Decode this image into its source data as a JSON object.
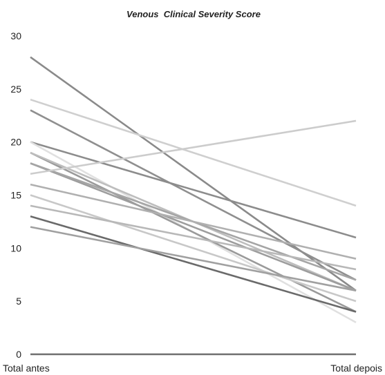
{
  "chart_data": {
    "type": "line",
    "title": "Venous  Clinical Severity Score",
    "xlabel": "",
    "ylabel": "",
    "categories": [
      "Total antes",
      "Total depois"
    ],
    "ylim": [
      0,
      30
    ],
    "yticks": [
      0,
      5,
      10,
      15,
      20,
      25,
      30
    ],
    "grid": false,
    "legend": "none",
    "series": [
      {
        "values": [
          28,
          6
        ],
        "color": "#8a8a8a"
      },
      {
        "values": [
          24,
          14
        ],
        "color": "#cfcfcf"
      },
      {
        "values": [
          23,
          7
        ],
        "color": "#8f8f8f"
      },
      {
        "values": [
          20,
          11
        ],
        "color": "#8c8c8c"
      },
      {
        "values": [
          20,
          3
        ],
        "color": "#e0e0e0"
      },
      {
        "values": [
          19,
          4
        ],
        "color": "#9a9a9a"
      },
      {
        "values": [
          19,
          6
        ],
        "color": "#bdbdbd"
      },
      {
        "values": [
          18,
          6
        ],
        "color": "#9d9d9d"
      },
      {
        "values": [
          18,
          7
        ],
        "color": "#a5a5a5"
      },
      {
        "values": [
          17,
          22
        ],
        "color": "#cccccc"
      },
      {
        "values": [
          16,
          9
        ],
        "color": "#b0b0b0"
      },
      {
        "values": [
          15,
          5
        ],
        "color": "#c8c8c8"
      },
      {
        "values": [
          14,
          8
        ],
        "color": "#b8b8b8"
      },
      {
        "values": [
          13,
          4
        ],
        "color": "#6a6a6a"
      },
      {
        "values": [
          12,
          6
        ],
        "color": "#a0a0a0"
      }
    ]
  }
}
